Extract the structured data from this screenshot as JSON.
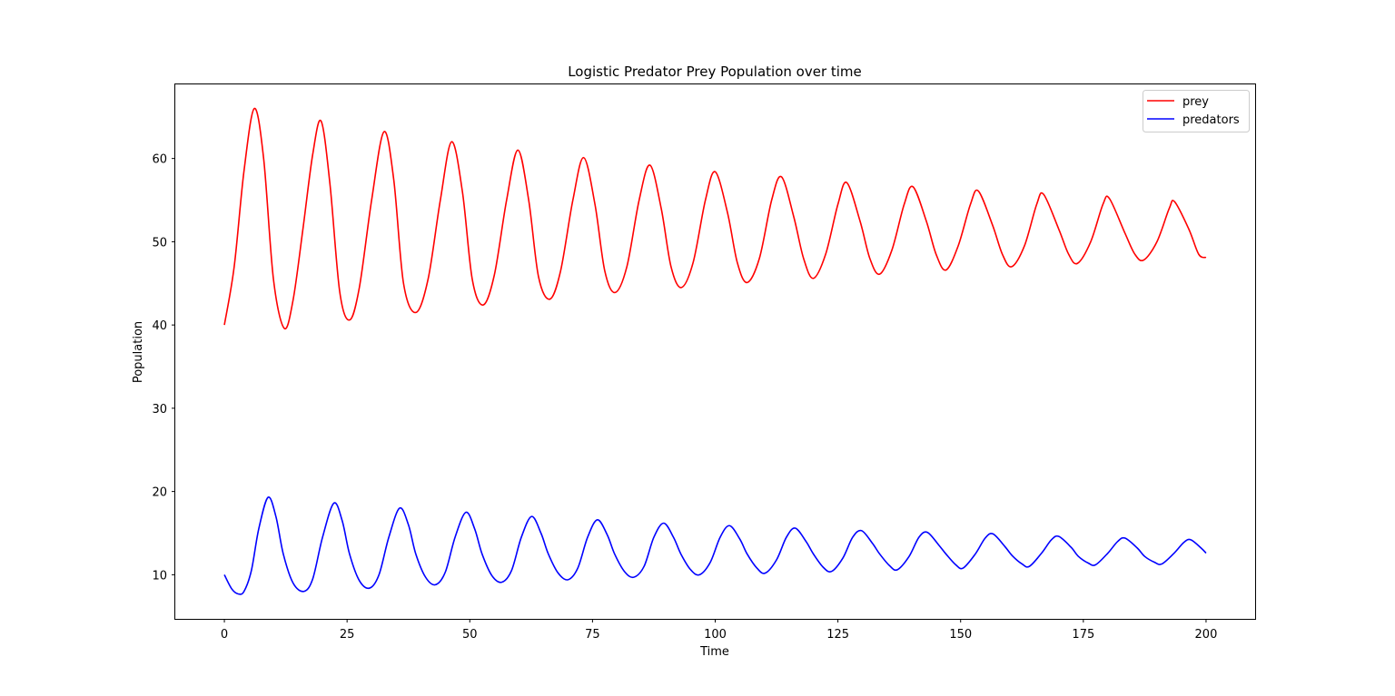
{
  "chart_data": {
    "type": "line",
    "title": "Logistic Predator Prey Population over time",
    "xlabel": "Time",
    "ylabel": "Population",
    "xlim": [
      -10,
      210
    ],
    "ylim": [
      4.7,
      68.9
    ],
    "xticks": [
      0,
      25,
      50,
      75,
      100,
      125,
      150,
      175,
      200
    ],
    "yticks": [
      10,
      20,
      30,
      40,
      50,
      60
    ],
    "legend_position": "top-right",
    "grid": false,
    "series": [
      {
        "name": "prey",
        "color": "#ff0000",
        "points": [
          [
            0,
            40.0
          ],
          [
            2.0,
            47.0
          ],
          [
            4.0,
            58.5
          ],
          [
            6.1,
            66.0
          ],
          [
            8.0,
            60.0
          ],
          [
            10.0,
            45.5
          ],
          [
            12.2,
            39.6
          ],
          [
            14.0,
            43.0
          ],
          [
            16.0,
            51.5
          ],
          [
            18.0,
            60.5
          ],
          [
            19.7,
            64.5
          ],
          [
            21.5,
            57.0
          ],
          [
            23.5,
            44.0
          ],
          [
            25.5,
            40.6
          ],
          [
            27.5,
            44.5
          ],
          [
            30.0,
            55.0
          ],
          [
            32.5,
            63.2
          ],
          [
            34.5,
            57.5
          ],
          [
            36.5,
            45.0
          ],
          [
            39.0,
            41.5
          ],
          [
            41.5,
            45.5
          ],
          [
            44.0,
            55.0
          ],
          [
            46.3,
            62.0
          ],
          [
            48.5,
            56.0
          ],
          [
            50.5,
            45.5
          ],
          [
            52.7,
            42.4
          ],
          [
            55.0,
            46.0
          ],
          [
            57.5,
            55.0
          ],
          [
            59.8,
            61.0
          ],
          [
            62.0,
            55.0
          ],
          [
            64.0,
            45.8
          ],
          [
            66.3,
            43.1
          ],
          [
            68.5,
            46.5
          ],
          [
            71.0,
            55.0
          ],
          [
            73.2,
            60.1
          ],
          [
            75.5,
            54.5
          ],
          [
            77.5,
            46.5
          ],
          [
            79.6,
            43.9
          ],
          [
            82.0,
            47.0
          ],
          [
            84.5,
            55.0
          ],
          [
            86.7,
            59.2
          ],
          [
            89.0,
            54.0
          ],
          [
            91.0,
            47.0
          ],
          [
            93.1,
            44.5
          ],
          [
            95.5,
            47.5
          ],
          [
            98.0,
            55.0
          ],
          [
            100.0,
            58.4
          ],
          [
            102.5,
            53.5
          ],
          [
            104.5,
            47.5
          ],
          [
            106.5,
            45.1
          ],
          [
            109.0,
            48.0
          ],
          [
            111.5,
            55.0
          ],
          [
            113.5,
            57.8
          ],
          [
            116.0,
            53.0
          ],
          [
            118.0,
            48.0
          ],
          [
            120.0,
            45.6
          ],
          [
            122.5,
            48.5
          ],
          [
            125.0,
            54.5
          ],
          [
            126.8,
            57.1
          ],
          [
            129.5,
            52.5
          ],
          [
            131.5,
            48.0
          ],
          [
            133.5,
            46.1
          ],
          [
            136.0,
            49.0
          ],
          [
            138.5,
            54.5
          ],
          [
            140.3,
            56.6
          ],
          [
            143.0,
            52.5
          ],
          [
            145.0,
            48.5
          ],
          [
            147.0,
            46.6
          ],
          [
            149.5,
            49.5
          ],
          [
            152.0,
            54.5
          ],
          [
            153.6,
            56.1
          ],
          [
            156.5,
            52.0
          ],
          [
            158.5,
            48.5
          ],
          [
            160.4,
            47.0
          ],
          [
            163.0,
            49.5
          ],
          [
            165.5,
            54.5
          ],
          [
            166.9,
            55.7
          ],
          [
            170.0,
            51.5
          ],
          [
            172.0,
            48.5
          ],
          [
            173.8,
            47.4
          ],
          [
            176.5,
            50.0
          ],
          [
            179.0,
            54.5
          ],
          [
            180.3,
            55.2
          ],
          [
            183.5,
            51.0
          ],
          [
            185.5,
            48.5
          ],
          [
            187.3,
            47.8
          ],
          [
            190.0,
            50.0
          ],
          [
            192.5,
            54.0
          ],
          [
            193.6,
            54.8
          ],
          [
            196.5,
            51.5
          ],
          [
            198.5,
            48.5
          ],
          [
            200.0,
            48.1
          ]
        ]
      },
      {
        "name": "predators",
        "color": "#0000ff",
        "points": [
          [
            0,
            10.0
          ],
          [
            1.5,
            8.3
          ],
          [
            2.8,
            7.7
          ],
          [
            4.0,
            8.0
          ],
          [
            5.5,
            10.5
          ],
          [
            7.0,
            15.5
          ],
          [
            8.9,
            19.3
          ],
          [
            10.5,
            17.0
          ],
          [
            12.0,
            12.5
          ],
          [
            14.0,
            9.0
          ],
          [
            16.2,
            8.0
          ],
          [
            18.0,
            9.5
          ],
          [
            20.0,
            14.5
          ],
          [
            22.3,
            18.6
          ],
          [
            24.0,
            16.5
          ],
          [
            25.5,
            12.5
          ],
          [
            27.5,
            9.3
          ],
          [
            29.6,
            8.4
          ],
          [
            31.5,
            10.0
          ],
          [
            33.5,
            14.5
          ],
          [
            35.7,
            18.0
          ],
          [
            37.5,
            16.0
          ],
          [
            39.0,
            12.5
          ],
          [
            41.0,
            9.7
          ],
          [
            43.0,
            8.8
          ],
          [
            45.0,
            10.3
          ],
          [
            47.0,
            14.5
          ],
          [
            49.2,
            17.5
          ],
          [
            51.0,
            15.5
          ],
          [
            52.5,
            12.5
          ],
          [
            54.5,
            9.9
          ],
          [
            56.5,
            9.1
          ],
          [
            58.5,
            10.5
          ],
          [
            60.5,
            14.5
          ],
          [
            62.6,
            17.0
          ],
          [
            64.5,
            15.0
          ],
          [
            66.0,
            12.5
          ],
          [
            68.0,
            10.2
          ],
          [
            70.0,
            9.4
          ],
          [
            72.0,
            10.8
          ],
          [
            74.0,
            14.5
          ],
          [
            76.0,
            16.6
          ],
          [
            78.0,
            14.8
          ],
          [
            79.5,
            12.5
          ],
          [
            81.5,
            10.4
          ],
          [
            83.4,
            9.7
          ],
          [
            85.5,
            11.0
          ],
          [
            87.5,
            14.5
          ],
          [
            89.5,
            16.2
          ],
          [
            91.5,
            14.5
          ],
          [
            93.0,
            12.5
          ],
          [
            95.0,
            10.6
          ],
          [
            96.8,
            10.0
          ],
          [
            99.0,
            11.5
          ],
          [
            101.0,
            14.5
          ],
          [
            102.9,
            15.9
          ],
          [
            105.0,
            14.3
          ],
          [
            106.5,
            12.5
          ],
          [
            108.5,
            10.8
          ],
          [
            110.2,
            10.2
          ],
          [
            112.5,
            11.8
          ],
          [
            114.5,
            14.5
          ],
          [
            116.3,
            15.6
          ],
          [
            118.5,
            14.0
          ],
          [
            120.0,
            12.5
          ],
          [
            122.0,
            10.9
          ],
          [
            123.7,
            10.4
          ],
          [
            126.0,
            12.0
          ],
          [
            128.0,
            14.5
          ],
          [
            129.8,
            15.3
          ],
          [
            132.0,
            13.8
          ],
          [
            133.5,
            12.5
          ],
          [
            135.5,
            11.1
          ],
          [
            137.1,
            10.6
          ],
          [
            139.5,
            12.2
          ],
          [
            141.5,
            14.5
          ],
          [
            143.2,
            15.1
          ],
          [
            145.5,
            13.6
          ],
          [
            147.0,
            12.5
          ],
          [
            149.0,
            11.2
          ],
          [
            150.5,
            10.8
          ],
          [
            153.0,
            12.5
          ],
          [
            155.0,
            14.4
          ],
          [
            156.6,
            14.9
          ],
          [
            159.0,
            13.4
          ],
          [
            160.5,
            12.3
          ],
          [
            162.5,
            11.3
          ],
          [
            164.0,
            11.0
          ],
          [
            166.5,
            12.6
          ],
          [
            168.5,
            14.2
          ],
          [
            170.0,
            14.6
          ],
          [
            172.5,
            13.3
          ],
          [
            174.0,
            12.2
          ],
          [
            176.0,
            11.4
          ],
          [
            177.5,
            11.2
          ],
          [
            180.0,
            12.6
          ],
          [
            182.0,
            14.0
          ],
          [
            183.5,
            14.4
          ],
          [
            186.0,
            13.2
          ],
          [
            187.5,
            12.2
          ],
          [
            189.5,
            11.5
          ],
          [
            191.0,
            11.3
          ],
          [
            193.5,
            12.6
          ],
          [
            195.5,
            13.9
          ],
          [
            196.9,
            14.2
          ],
          [
            199.0,
            13.2
          ],
          [
            200.0,
            12.6
          ]
        ]
      }
    ]
  }
}
